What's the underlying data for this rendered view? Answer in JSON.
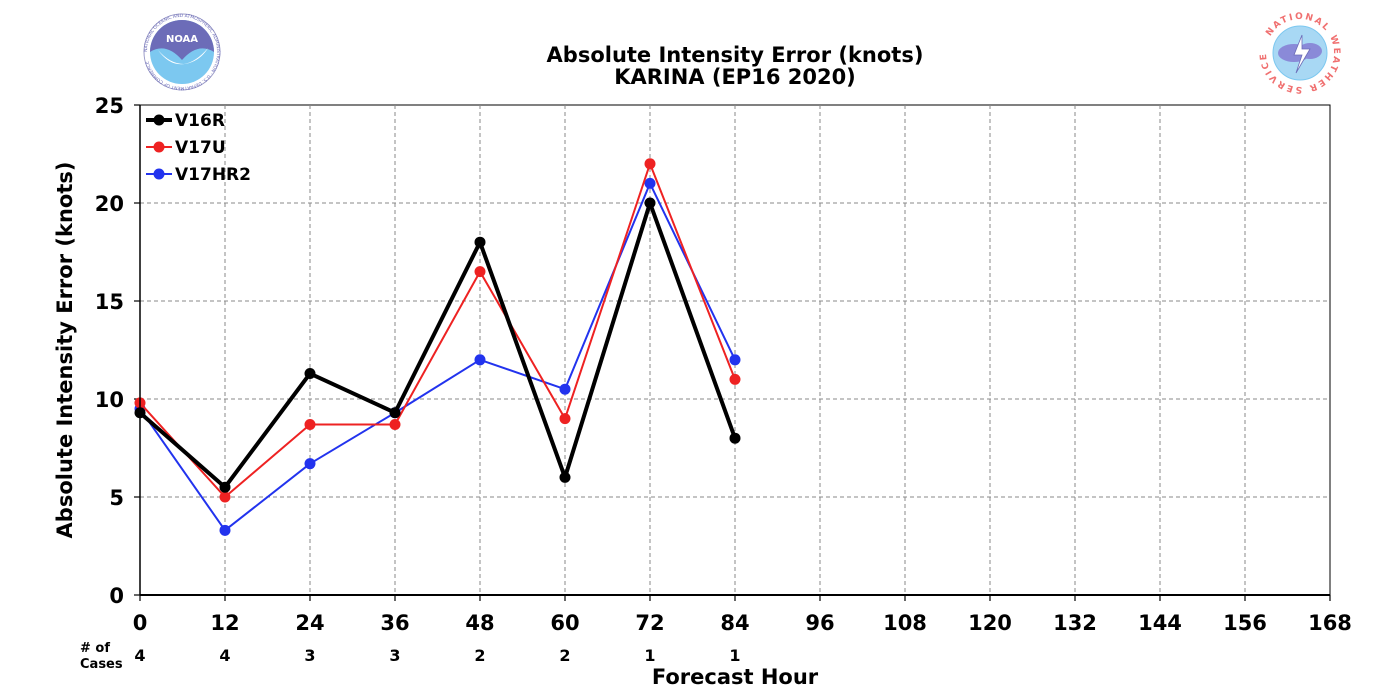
{
  "title_line1": "Absolute Intensity Error (knots)",
  "title_line2": "KARINA (EP16 2020)",
  "logos": {
    "left": {
      "icon": "noaa-logo-icon",
      "text": "NOAA",
      "ring_text": "NATIONAL OCEANIC AND ATMOSPHERIC ADMINISTRATION · U.S. DEPARTMENT OF COMMERCE"
    },
    "right": {
      "icon": "nws-logo-icon",
      "ring_text": "NATIONAL WEATHER SERVICE"
    }
  },
  "cases_label_line1": "# of",
  "cases_label_line2": "Cases",
  "chart_data": {
    "type": "line",
    "xlabel": "Forecast Hour",
    "ylabel": "Absolute Intensity Error (knots)",
    "xlim": [
      0,
      168
    ],
    "ylim": [
      0,
      25
    ],
    "x_ticks": [
      "0",
      "12",
      "24",
      "36",
      "48",
      "60",
      "72",
      "84",
      "96",
      "108",
      "120",
      "132",
      "144",
      "156",
      "168"
    ],
    "y_ticks": [
      "0",
      "5",
      "10",
      "15",
      "20",
      "25"
    ],
    "grid": true,
    "legend_position": "top-left",
    "series": [
      {
        "name": "V16R",
        "color": "#000000",
        "x": [
          0,
          12,
          24,
          36,
          48,
          60,
          72,
          84
        ],
        "values": [
          9.3,
          5.5,
          11.3,
          9.3,
          18,
          6,
          20,
          8
        ]
      },
      {
        "name": "V17U",
        "color": "#ee2222",
        "x": [
          0,
          12,
          24,
          36,
          48,
          60,
          72,
          84
        ],
        "values": [
          9.8,
          5,
          8.7,
          8.7,
          16.5,
          9,
          22,
          11
        ]
      },
      {
        "name": "V17HR2",
        "color": "#2233ee",
        "x": [
          0,
          12,
          24,
          36,
          48,
          60,
          72,
          84
        ],
        "values": [
          9.5,
          3.3,
          6.7,
          9.3,
          12,
          10.5,
          21,
          12
        ]
      }
    ],
    "cases": [
      {
        "hour": 0,
        "count": "4"
      },
      {
        "hour": 12,
        "count": "4"
      },
      {
        "hour": 24,
        "count": "3"
      },
      {
        "hour": 36,
        "count": "3"
      },
      {
        "hour": 48,
        "count": "2"
      },
      {
        "hour": 60,
        "count": "2"
      },
      {
        "hour": 72,
        "count": "1"
      },
      {
        "hour": 84,
        "count": "1"
      }
    ]
  }
}
